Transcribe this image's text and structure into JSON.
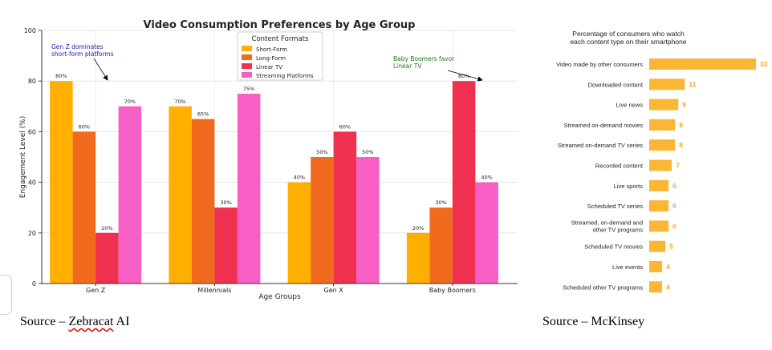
{
  "chart_data": [
    {
      "type": "bar",
      "title": "Video Consumption Preferences by Age Group",
      "xlabel": "Age Groups",
      "ylabel": "Engagement Level (%)",
      "ylim": [
        0,
        100
      ],
      "yticks": [
        0,
        20,
        40,
        60,
        80,
        100
      ],
      "grid": true,
      "legend_title": "Content Formats",
      "legend_position": "top-center",
      "categories": [
        "Gen Z",
        "Millennials",
        "Gen X",
        "Baby Boomers"
      ],
      "series": [
        {
          "name": "Short-Form",
          "color": "#ffaf00",
          "values": [
            80,
            70,
            40,
            20
          ],
          "labels": [
            "80%",
            "70%",
            "40%",
            "20%"
          ]
        },
        {
          "name": "Long-Form",
          "color": "#f16b1f",
          "values": [
            60,
            65,
            50,
            30
          ],
          "labels": [
            "60%",
            "65%",
            "50%",
            "30%"
          ]
        },
        {
          "name": "Linear TV",
          "color": "#f0304f",
          "values": [
            20,
            30,
            60,
            80
          ],
          "labels": [
            "20%",
            "30%",
            "60%",
            "80%"
          ]
        },
        {
          "name": "Streaming Platforms",
          "color": "#f85fc4",
          "values": [
            70,
            75,
            50,
            40
          ],
          "labels": [
            "70%",
            "75%",
            "50%",
            "40%"
          ]
        }
      ],
      "annotations": [
        {
          "text": [
            "Gen Z dominates",
            "short-form platforms"
          ],
          "color": "#1a1ab5",
          "points_to": "Gen Z"
        },
        {
          "text": [
            "Baby Boomers favor",
            "Linear TV"
          ],
          "color": "#1f7a1f",
          "points_to": "Baby Boomers"
        }
      ]
    },
    {
      "type": "bar",
      "orientation": "horizontal",
      "title": [
        "Percentage of consumers who watch",
        "each content type on their smartphone"
      ],
      "bar_color": "#fbb635",
      "value_color": "#f6a623",
      "categories": [
        [
          "Video made by other consumers"
        ],
        [
          "Downloaded content"
        ],
        [
          "Live news"
        ],
        [
          "Streamed on-demand movies"
        ],
        [
          "Streamed on-demand TV series"
        ],
        [
          "Recorded content"
        ],
        [
          "Live sports"
        ],
        [
          "Scheduled TV series"
        ],
        [
          "Streamed, on-demand and",
          "other TV programs"
        ],
        [
          "Scheduled TV movies"
        ],
        [
          "Live events"
        ],
        [
          "Scheduled other TV programs"
        ]
      ],
      "values": [
        33,
        11,
        9,
        8,
        8,
        7,
        6,
        6,
        6,
        5,
        4,
        4
      ]
    }
  ],
  "captions": {
    "left_prefix": "Source – ",
    "left_source": "Zebracat",
    "left_suffix": " AI",
    "right": "Source – McKinsey"
  }
}
